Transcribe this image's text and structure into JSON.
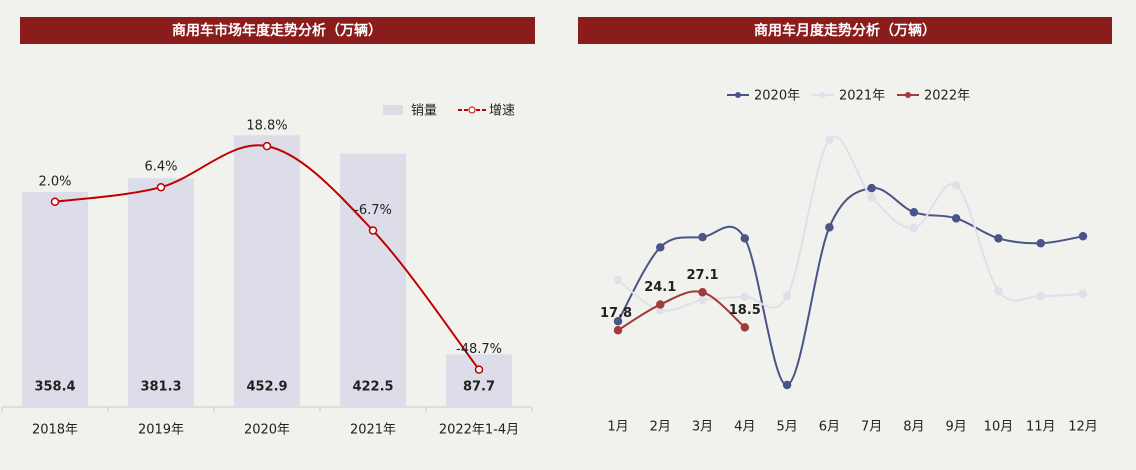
{
  "chart_data": [
    {
      "type": "bar",
      "title": "商用车市场年度走势分析（万辆）",
      "categories": [
        "2018年",
        "2019年",
        "2020年",
        "2021年",
        "2022年1-4月"
      ],
      "series": [
        {
          "name": "销量",
          "type": "bar",
          "color": "#dcdde8",
          "values": [
            358.4,
            381.3,
            452.9,
            422.5,
            87.7
          ]
        },
        {
          "name": "增速",
          "type": "line",
          "axis": "y2",
          "color": "#c00000",
          "values": [
            2.0,
            6.4,
            18.8,
            -6.7,
            -48.7
          ],
          "value_labels": [
            "2.0%",
            "6.4%",
            "18.8%",
            "-6.7%",
            "-48.7%"
          ]
        }
      ],
      "ylim": [
        0,
        480
      ],
      "y2lim": [
        -60,
        27
      ],
      "legend": "top-right"
    },
    {
      "type": "line",
      "title": "商用车月度走势分析（万辆）",
      "categories": [
        "1月",
        "2月",
        "3月",
        "4月",
        "5月",
        "6月",
        "7月",
        "8月",
        "9月",
        "10月",
        "11月",
        "12月"
      ],
      "series": [
        {
          "name": "2020年",
          "color": "#4a5487",
          "values": [
            20.0,
            38.1,
            40.6,
            40.3,
            4.4,
            43.0,
            52.6,
            46.7,
            45.2,
            40.3,
            39.1,
            40.8
          ]
        },
        {
          "name": "2021年",
          "color": "#dfe0ea",
          "values": [
            30.1,
            22.7,
            25.2,
            26.0,
            26.2,
            64.5,
            50.4,
            42.8,
            53.3,
            27.4,
            26.2,
            26.7
          ]
        },
        {
          "name": "2022年",
          "color": "#a33a3a",
          "values": [
            17.8,
            24.1,
            27.1,
            18.5,
            null,
            null,
            null,
            null,
            null,
            null,
            null,
            null
          ],
          "show_labels": true
        }
      ],
      "ylim": [
        0,
        70
      ],
      "legend": "top"
    }
  ]
}
